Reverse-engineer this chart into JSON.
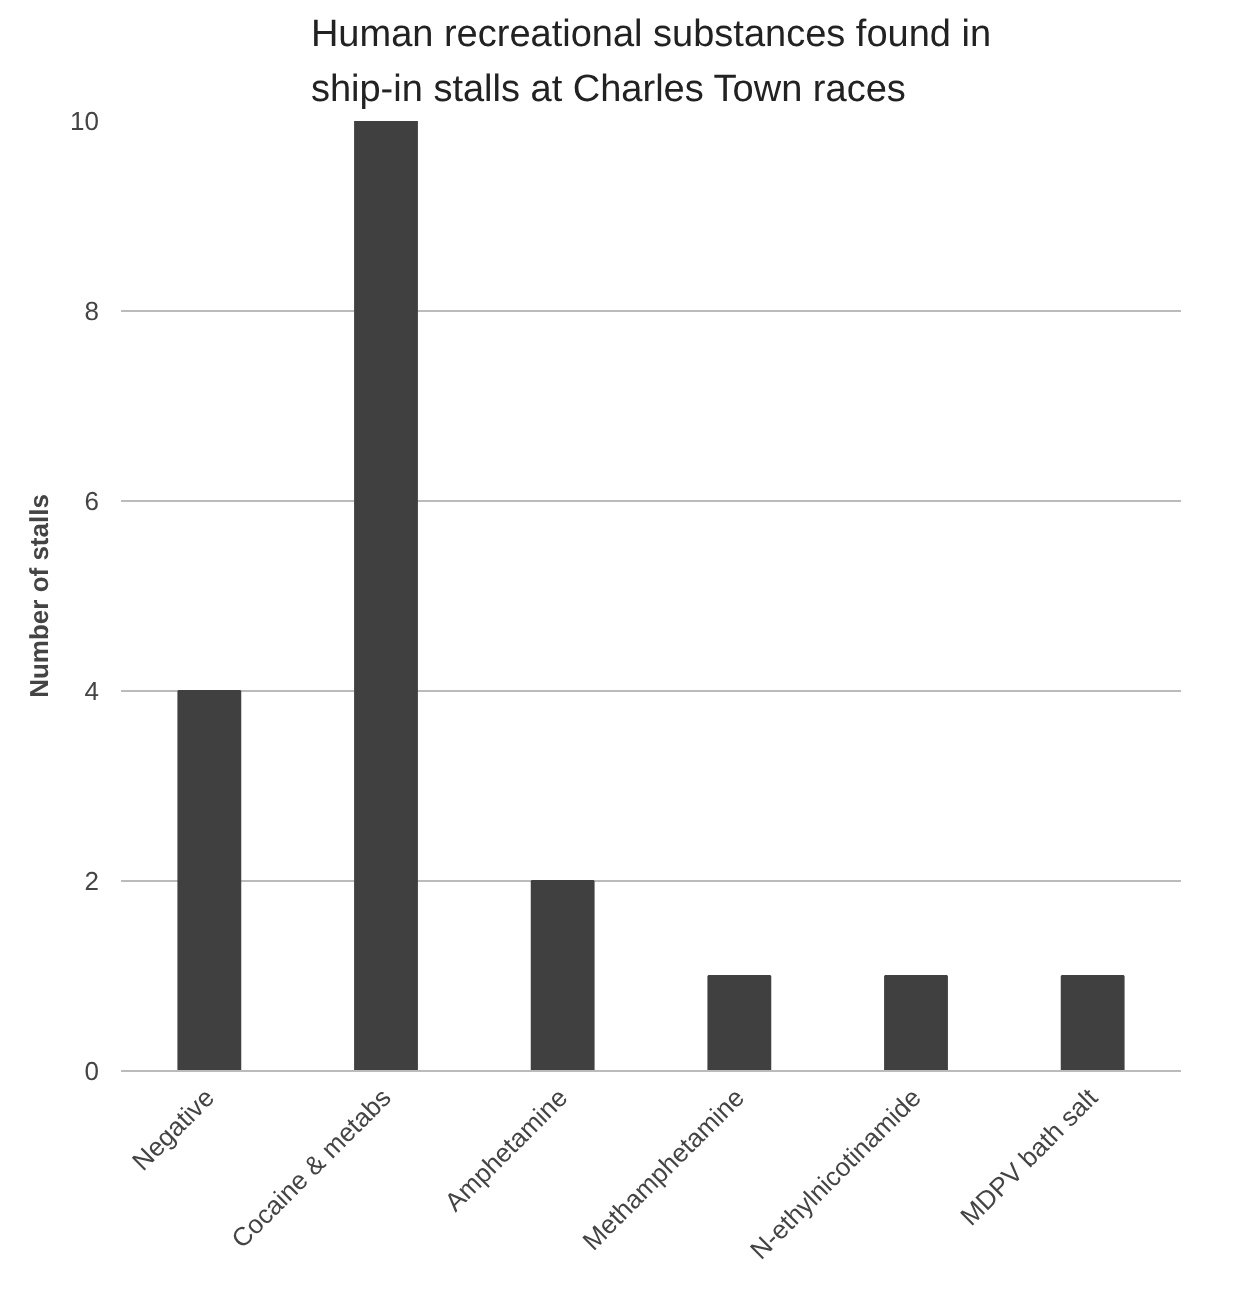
{
  "chart_data": {
    "type": "bar",
    "title": "Human recreational substances found in ship-in stalls at Charles Town races",
    "ylabel": "Number of stalls",
    "categories": [
      "Negative",
      "Cocaine & metabs",
      "Amphetamine",
      "Methamphetamine",
      "N-ethylnicotinamide",
      "MDPV bath salt"
    ],
    "values": [
      4,
      10,
      2,
      1,
      1,
      1
    ],
    "color": "#404040",
    "ylim": [
      0,
      10
    ],
    "yticks": [
      0,
      2,
      4,
      6,
      8,
      10
    ],
    "grid": "y"
  }
}
